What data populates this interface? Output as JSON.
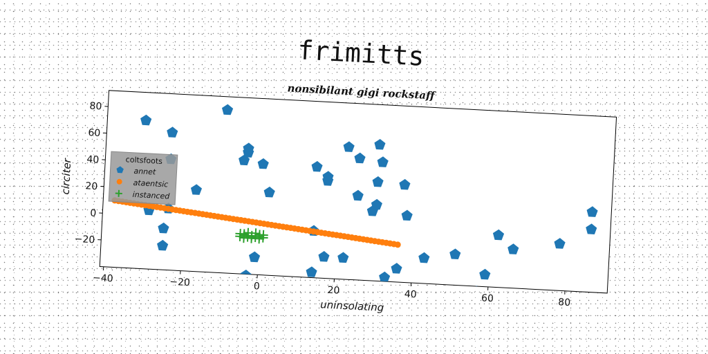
{
  "chart_data": {
    "type": "scatter",
    "title": "frimitts",
    "subtitle": "nonsibilant gigi rockstaff",
    "xlabel": "uninsolating",
    "ylabel": "circiter",
    "xlim": [
      -41,
      91
    ],
    "ylim": [
      -40,
      92
    ],
    "x_ticks": [
      -40,
      -20,
      0,
      20,
      40,
      60,
      80
    ],
    "y_ticks": [
      -20,
      0,
      20,
      40,
      60,
      80
    ],
    "legend": {
      "title": "coltsfoots",
      "position": "upper-left"
    },
    "series": [
      {
        "name": "annet",
        "marker": "pentagon",
        "color": "#1f77b4",
        "points": [
          [
            -31,
            71
          ],
          [
            -10,
            82
          ],
          [
            -24,
            63
          ],
          [
            -24,
            43
          ],
          [
            -4,
            54
          ],
          [
            -4,
            51
          ],
          [
            -5,
            45
          ],
          [
            0,
            43
          ],
          [
            2,
            22
          ],
          [
            -17,
            21
          ],
          [
            -29,
            4
          ],
          [
            -24,
            6
          ],
          [
            -25,
            -9
          ],
          [
            -25,
            -22
          ],
          [
            -1,
            -27
          ],
          [
            -3,
            -41
          ],
          [
            14,
            43
          ],
          [
            17,
            36
          ],
          [
            17,
            33
          ],
          [
            22,
            59
          ],
          [
            25,
            51
          ],
          [
            25,
            23
          ],
          [
            30,
            62
          ],
          [
            31,
            49
          ],
          [
            30,
            34
          ],
          [
            30,
            17
          ],
          [
            29,
            12
          ],
          [
            37,
            33
          ],
          [
            38,
            10
          ],
          [
            14,
            -5
          ],
          [
            17,
            -24
          ],
          [
            22,
            -24
          ],
          [
            14,
            -36
          ],
          [
            33,
            -37
          ],
          [
            36,
            -30
          ],
          [
            43,
            -21
          ],
          [
            51,
            -17
          ],
          [
            62,
            -1
          ],
          [
            66,
            -11
          ],
          [
            57,
            -44
          ],
          [
            59,
            -31
          ],
          [
            78,
            -5
          ],
          [
            86,
            20
          ],
          [
            86,
            7
          ],
          [
            83,
            -50
          ]
        ]
      },
      {
        "name": "ataentsic",
        "marker": "circle",
        "color": "#ff7f0e",
        "line_from": [
          -38,
          10
        ],
        "line_to": [
          36,
          -12
        ],
        "count": 75
      },
      {
        "name": "instanced",
        "marker": "plus",
        "color": "#2ca02c",
        "points": [
          [
            -5,
            -12
          ],
          [
            -4,
            -11
          ],
          [
            -3,
            -12
          ],
          [
            -4,
            -10
          ],
          [
            -2,
            -11
          ],
          [
            -1,
            -12
          ],
          [
            0,
            -10
          ],
          [
            1,
            -12
          ],
          [
            -3,
            -9
          ],
          [
            -1,
            -9
          ],
          [
            0,
            -11
          ],
          [
            1,
            -10
          ],
          [
            -5,
            -10
          ],
          [
            -2,
            -13
          ],
          [
            -4,
            -13
          ],
          [
            0,
            -13
          ]
        ]
      }
    ]
  }
}
